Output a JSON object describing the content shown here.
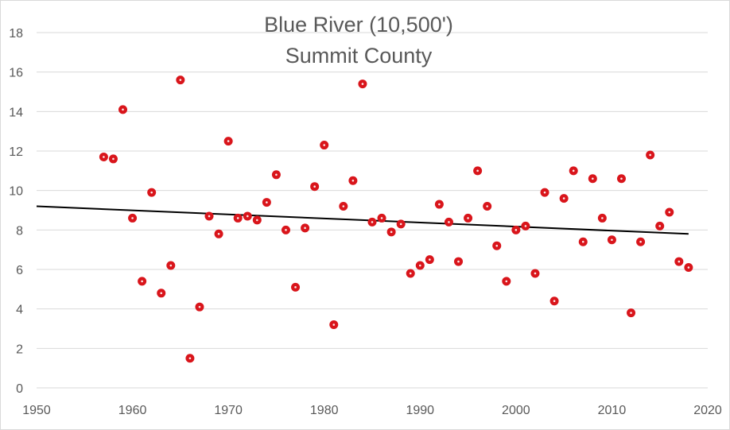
{
  "chart_data": {
    "type": "scatter",
    "title": [
      "Blue River (10,500')",
      "Summit County"
    ],
    "xlim": [
      1950,
      2020
    ],
    "ylim": [
      0,
      18
    ],
    "xticks": [
      1950,
      1960,
      1970,
      1980,
      1990,
      2000,
      2010,
      2020
    ],
    "yticks": [
      0,
      2,
      4,
      6,
      8,
      10,
      12,
      14,
      16,
      18
    ],
    "grid": "horizontal",
    "legend": "none",
    "marker_color": "#d9151b",
    "trendline": {
      "x": [
        1950,
        2018
      ],
      "y": [
        9.2,
        7.8
      ],
      "color": "#000000"
    },
    "x": [
      1957,
      1958,
      1959,
      1960,
      1961,
      1962,
      1963,
      1964,
      1965,
      1966,
      1967,
      1968,
      1969,
      1970,
      1971,
      1972,
      1973,
      1974,
      1975,
      1976,
      1977,
      1978,
      1979,
      1980,
      1981,
      1982,
      1983,
      1984,
      1985,
      1986,
      1987,
      1988,
      1989,
      1990,
      1991,
      1992,
      1993,
      1994,
      1995,
      1996,
      1997,
      1998,
      1999,
      2000,
      2001,
      2002,
      2003,
      2004,
      2005,
      2006,
      2007,
      2008,
      2009,
      2010,
      2011,
      2012,
      2013,
      2014,
      2015,
      2016,
      2017,
      2018
    ],
    "y": [
      11.7,
      11.6,
      14.1,
      8.6,
      5.4,
      9.9,
      4.8,
      6.2,
      15.6,
      1.5,
      4.1,
      8.7,
      7.8,
      12.5,
      8.6,
      8.7,
      8.5,
      9.4,
      10.8,
      8.0,
      5.1,
      8.1,
      10.2,
      12.3,
      3.2,
      9.2,
      10.5,
      15.4,
      8.4,
      8.6,
      7.9,
      8.3,
      5.8,
      6.2,
      6.5,
      9.3,
      8.4,
      6.4,
      8.6,
      11.0,
      9.2,
      7.2,
      5.4,
      8.0,
      8.2,
      5.8,
      9.9,
      4.4,
      9.6,
      11.0,
      7.4,
      10.6,
      8.6,
      7.5,
      10.6,
      3.8,
      7.4,
      11.8,
      8.2,
      8.9,
      6.4,
      6.1
    ]
  }
}
